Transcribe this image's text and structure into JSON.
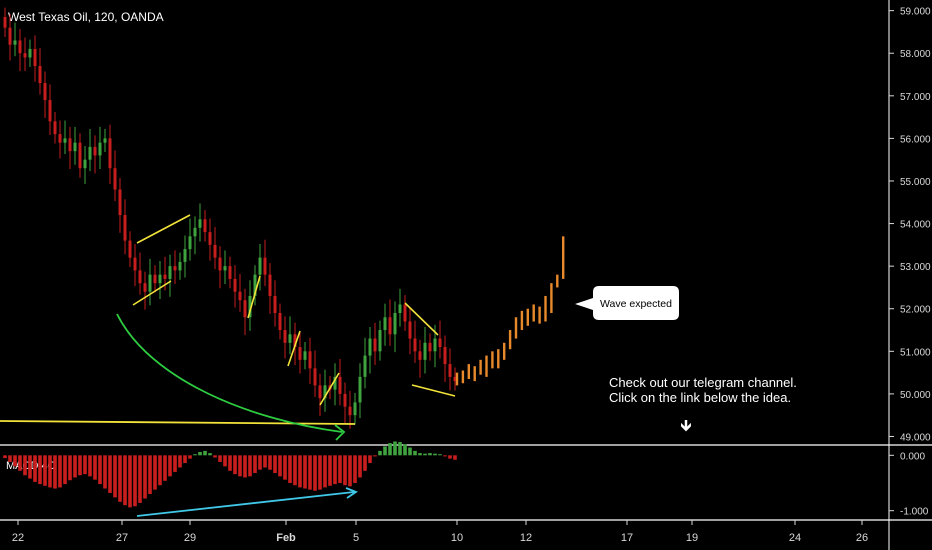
{
  "chart_data": {
    "type": "candlestick",
    "title": "West Texas Oil, 120, OANDA",
    "colors": {
      "background": "#000000",
      "up_candle": "#3fa33f",
      "down_candle": "#c81e1e",
      "projection": "#e8892b",
      "pattern_lines": "#f2e33a",
      "curve_arrow": "#2ecc40",
      "macd_line": "#40c8e8",
      "axis_text": "#d8d8d8",
      "divider": "#ffffff"
    },
    "price_axis": {
      "ylim": [
        48.8,
        59.25
      ],
      "ticks": [
        "59.000",
        "58.000",
        "57.000",
        "56.000",
        "55.000",
        "54.000",
        "53.000",
        "52.000",
        "51.000",
        "50.000",
        "49.000"
      ]
    },
    "time_axis": {
      "labels": [
        "22",
        "27",
        "29",
        "Feb",
        "5",
        "10",
        "12",
        "17",
        "19",
        "24",
        "26"
      ]
    },
    "candles_close": [
      58.6,
      58.2,
      58.3,
      58.0,
      57.9,
      58.1,
      57.7,
      57.3,
      56.9,
      56.4,
      56.1,
      55.9,
      56.0,
      55.7,
      55.9,
      55.3,
      55.5,
      55.8,
      55.6,
      55.9,
      56.0,
      55.3,
      54.8,
      54.2,
      53.6,
      53.2,
      52.9,
      52.6,
      52.4,
      52.8,
      52.6,
      52.8,
      52.7,
      53.0,
      52.9,
      53.1,
      53.4,
      53.7,
      53.9,
      54.1,
      53.8,
      53.5,
      53.2,
      52.9,
      53.0,
      52.7,
      52.4,
      52.2,
      51.8,
      52.3,
      52.8,
      53.2,
      52.8,
      52.3,
      51.9,
      51.5,
      51.2,
      51.4,
      51.1,
      50.8,
      51.0,
      50.6,
      50.2,
      49.9,
      50.2,
      50.1,
      50.4,
      50.0,
      49.7,
      49.5,
      49.8,
      50.4,
      50.9,
      51.3,
      51.0,
      51.5,
      51.8,
      51.4,
      51.9,
      52.1,
      51.7,
      51.3,
      51.0,
      50.8,
      51.2,
      51.0,
      51.3,
      51.1,
      50.7,
      50.4,
      50.3
    ],
    "projection_bars": [
      {
        "low": 50.2,
        "high": 50.5
      },
      {
        "low": 50.25,
        "high": 50.55
      },
      {
        "low": 50.35,
        "high": 50.7
      },
      {
        "low": 50.3,
        "high": 50.65
      },
      {
        "low": 50.45,
        "high": 50.8
      },
      {
        "low": 50.4,
        "high": 50.9
      },
      {
        "low": 50.6,
        "high": 51.0
      },
      {
        "low": 50.6,
        "high": 51.05
      },
      {
        "low": 50.8,
        "high": 51.2
      },
      {
        "low": 51.05,
        "high": 51.5
      },
      {
        "low": 51.3,
        "high": 51.8
      },
      {
        "low": 51.5,
        "high": 51.95
      },
      {
        "low": 51.6,
        "high": 52.0
      },
      {
        "low": 51.7,
        "high": 52.1
      },
      {
        "low": 51.65,
        "high": 52.05
      },
      {
        "low": 51.7,
        "high": 52.3
      },
      {
        "low": 51.9,
        "high": 52.6
      },
      {
        "low": 52.5,
        "high": 52.8
      },
      {
        "low": 52.7,
        "high": 53.7
      }
    ],
    "annotations": {
      "callout": "Wave expected",
      "note_line1": "Check out our telegram channel.",
      "note_line2": "Click on the link below the idea.",
      "arrow_glyph": "🡻"
    },
    "macd": {
      "label": "MACD 4C",
      "ticks": [
        "0.000",
        "-1.000"
      ],
      "ylim": [
        -1.15,
        0.15
      ],
      "histogram": [
        -0.05,
        -0.12,
        -0.2,
        -0.28,
        -0.36,
        -0.42,
        -0.48,
        -0.52,
        -0.55,
        -0.58,
        -0.6,
        -0.58,
        -0.52,
        -0.45,
        -0.4,
        -0.36,
        -0.34,
        -0.38,
        -0.44,
        -0.52,
        -0.6,
        -0.68,
        -0.76,
        -0.84,
        -0.9,
        -0.94,
        -0.92,
        -0.86,
        -0.78,
        -0.7,
        -0.62,
        -0.54,
        -0.46,
        -0.38,
        -0.3,
        -0.22,
        -0.14,
        -0.06,
        0.02,
        0.06,
        0.08,
        0.04,
        -0.04,
        -0.12,
        -0.2,
        -0.28,
        -0.34,
        -0.38,
        -0.4,
        -0.38,
        -0.32,
        -0.26,
        -0.22,
        -0.26,
        -0.32,
        -0.38,
        -0.44,
        -0.5,
        -0.54,
        -0.58,
        -0.6,
        -0.62,
        -0.64,
        -0.62,
        -0.58,
        -0.55,
        -0.52,
        -0.5,
        -0.54,
        -0.56,
        -0.5,
        -0.4,
        -0.28,
        -0.14,
        -0.02,
        0.08,
        0.16,
        0.22,
        0.25,
        0.24,
        0.2,
        0.14,
        0.08,
        0.04,
        0.03,
        0.04,
        0.03,
        0.02,
        -0.02,
        -0.06,
        -0.08
      ]
    }
  }
}
